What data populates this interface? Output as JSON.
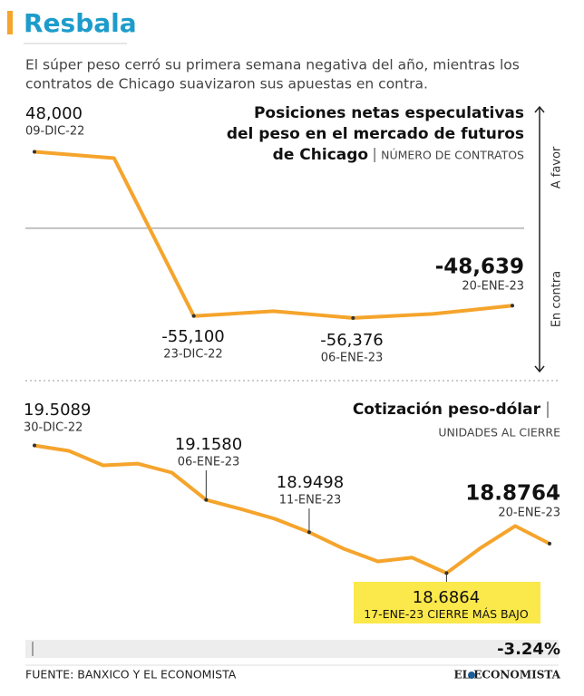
{
  "header": {
    "title": "Resbala",
    "subtitle": [
      "El súper peso cerró su primera semana negativa del año, mientras los",
      "contratos de Chicago suavizaron sus apuestas en contra."
    ]
  },
  "chart_data": [
    {
      "type": "line",
      "title": [
        "Posiciones netas especulativas",
        "del peso en el mercado de futuros",
        "de Chicago"
      ],
      "unit": "NÚMERO DE CONTRATOS",
      "axis_labels": {
        "positive": "A favor",
        "negative": "En contra"
      },
      "categories": [
        "09-DIC-22",
        null,
        "23-DIC-22",
        null,
        "06-ENE-23",
        null,
        "20-ENE-23"
      ],
      "values": [
        48000,
        44000,
        -55100,
        -52100,
        -56376,
        -53800,
        -48639
      ],
      "value_labels": [
        "48,000",
        null,
        "-55,100",
        null,
        "-56,376",
        null,
        "-48,639"
      ],
      "color": "#f5a42c",
      "ylim": [
        -90000,
        75000
      ],
      "zero_line": true
    },
    {
      "type": "line",
      "title": [
        "Cotización peso-dólar"
      ],
      "unit": "UNIDADES AL CIERRE",
      "categories": [
        "30-DIC-22",
        null,
        null,
        null,
        null,
        "06-ENE-23",
        null,
        null,
        "11-ENE-23",
        null,
        null,
        null,
        "17-ENE-23",
        null,
        null,
        "20-ENE-23"
      ],
      "values": [
        19.5089,
        19.474,
        19.381,
        19.392,
        19.334,
        19.158,
        19.1,
        19.036,
        18.9498,
        18.844,
        18.762,
        18.786,
        18.6864,
        18.85,
        18.99,
        18.8764
      ],
      "value_labels": [
        "19.5089",
        null,
        null,
        null,
        null,
        "19.1580",
        null,
        null,
        "18.9498",
        null,
        null,
        null,
        "18.6864",
        null,
        null,
        "18.8764"
      ],
      "annotation": "CIERRE MÁS BAJO",
      "change_label": "-3.24%",
      "color": "#f5a42c",
      "ylim": [
        18.35,
        19.81
      ]
    }
  ],
  "footer": {
    "source": "FUENTE: BANXICO Y EL ECONOMISTA",
    "logo": "EL ECONOMISTA"
  }
}
